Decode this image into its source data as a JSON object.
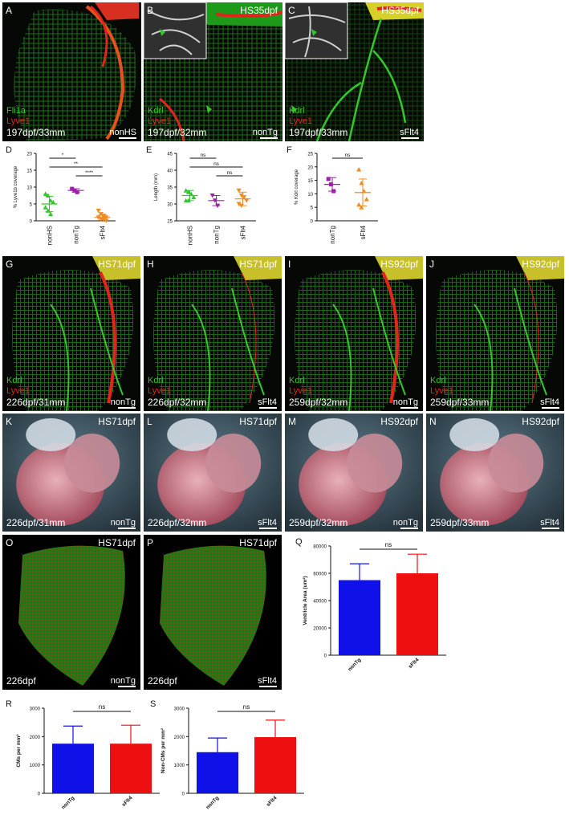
{
  "colors": {
    "green": "#35c62c",
    "red": "#e0261c",
    "blue": "#1010e8",
    "barRed": "#ee1010",
    "purple": "#a21caf",
    "orange": "#f08a22"
  },
  "row1": [
    {
      "letter": "A",
      "hs": "",
      "ch1": "Fli1a",
      "ch2": "Lyve1",
      "age": "197dpf/33mm",
      "geno": "nonHS"
    },
    {
      "letter": "B",
      "hs": "HS35dpf",
      "ch1": "Kdrl",
      "ch2": "Lyve1",
      "age": "197dpf/32mm",
      "geno": "nonTg"
    },
    {
      "letter": "C",
      "hs": "HS35dpf",
      "ch1": "Kdrl",
      "ch2": "Lyve1",
      "age": "197dpf/33mm",
      "geno": "sFlt4"
    }
  ],
  "row3": [
    {
      "letter": "G",
      "hs": "HS71dpf",
      "ch1": "Kdrl",
      "ch2": "Lyve1",
      "age": "226dpf/31mm",
      "geno": "nonTg"
    },
    {
      "letter": "H",
      "hs": "HS71dpf",
      "ch1": "Kdrl",
      "ch2": "Lyve1",
      "age": "226dpf/32mm",
      "geno": "sFlt4"
    },
    {
      "letter": "I",
      "hs": "HS92dpf",
      "ch1": "Kdrl",
      "ch2": "Lyve1",
      "age": "259dpf/32mm",
      "geno": "nonTg"
    },
    {
      "letter": "J",
      "hs": "HS92dpf",
      "ch1": "Kdrl",
      "ch2": "Lyve1",
      "age": "259dpf/33mm",
      "geno": "sFlt4"
    }
  ],
  "row4": [
    {
      "letter": "K",
      "hs": "HS71dpf",
      "age": "226dpf/31mm",
      "geno": "nonTg"
    },
    {
      "letter": "L",
      "hs": "HS71dpf",
      "age": "226dpf/32mm",
      "geno": "sFlt4"
    },
    {
      "letter": "M",
      "hs": "HS92dpf",
      "age": "259dpf/32mm",
      "geno": "nonTg"
    },
    {
      "letter": "N",
      "hs": "HS92dpf",
      "age": "259dpf/33mm",
      "geno": "sFlt4"
    }
  ],
  "row5": [
    {
      "letter": "O",
      "hs": "HS71dpf",
      "age": "226dpf",
      "geno": "nonTg"
    },
    {
      "letter": "P",
      "hs": "HS71dpf",
      "age": "226dpf",
      "geno": "sFlt4"
    }
  ],
  "chart_data": [
    {
      "letter": "D",
      "type": "scatter",
      "ylabel": "% Lyve1b coverage",
      "categories": [
        "nonHS",
        "nonTg",
        "sFlt4"
      ],
      "ylim": [
        0,
        20
      ],
      "yticks": [
        0,
        5,
        10,
        15,
        20
      ],
      "means": [
        5.0,
        9.0,
        1.0
      ],
      "sd": [
        2.3,
        0.5,
        0.8
      ],
      "points": [
        [
          8,
          7.5,
          6,
          5.5,
          4,
          3,
          2
        ],
        [
          9.5,
          9,
          8.5
        ],
        [
          3,
          2,
          1.5,
          1,
          1,
          0.5,
          0.5,
          0
        ]
      ],
      "sig": [
        {
          "a": 0,
          "b": 1,
          "label": "*"
        },
        {
          "a": 0,
          "b": 2,
          "label": "**"
        },
        {
          "a": 1,
          "b": 2,
          "label": "****"
        }
      ]
    },
    {
      "letter": "E",
      "type": "scatter",
      "ylabel": "Length (mm)",
      "categories": [
        "nonHS",
        "nonTg",
        "sFlt4"
      ],
      "ylim": [
        25,
        45
      ],
      "yticks": [
        25,
        30,
        35,
        40,
        45
      ],
      "means": [
        32.5,
        31,
        31.5
      ],
      "sd": [
        1.5,
        1.5,
        2
      ],
      "points": [
        [
          34,
          33.5,
          33,
          32,
          31,
          31
        ],
        [
          32.5,
          31,
          29.5
        ],
        [
          34,
          32.5,
          32,
          31,
          30,
          29.5
        ]
      ],
      "sig": [
        {
          "a": 0,
          "b": 1,
          "label": "ns"
        },
        {
          "a": 0,
          "b": 2,
          "label": "ns"
        },
        {
          "a": 1,
          "b": 2,
          "label": "ns"
        }
      ]
    },
    {
      "letter": "F",
      "type": "scatter",
      "ylabel": "% Kdrl coverage",
      "categories": [
        "nonTg",
        "sFlt4"
      ],
      "ylim": [
        0,
        25
      ],
      "yticks": [
        0,
        5,
        10,
        15,
        20,
        25
      ],
      "means": [
        13.5,
        10.5
      ],
      "sd": [
        2.5,
        5
      ],
      "points": [
        [
          15.5,
          13.5,
          11
        ],
        [
          19,
          14,
          11,
          8,
          6,
          5
        ]
      ],
      "sig": [
        {
          "a": 0,
          "b": 1,
          "label": "ns"
        }
      ]
    },
    {
      "letter": "Q",
      "type": "bar",
      "ylabel": "Ventricle Area (um²)",
      "categories": [
        "nonTg",
        "sFlt4"
      ],
      "ylim": [
        0,
        80000
      ],
      "yticks": [
        0,
        20000,
        40000,
        60000,
        80000
      ],
      "values": [
        55000,
        60000
      ],
      "err": [
        12000,
        14000
      ],
      "sig": "ns"
    },
    {
      "letter": "R",
      "type": "bar",
      "ylabel": "CMs per mm²",
      "categories": [
        "nonTg",
        "sFlt4"
      ],
      "ylim": [
        0,
        3000
      ],
      "yticks": [
        0,
        1000,
        2000,
        3000
      ],
      "values": [
        1750,
        1750
      ],
      "err": [
        620,
        650
      ],
      "sig": "ns"
    },
    {
      "letter": "S",
      "type": "bar",
      "ylabel": "Non-CMs per mm²",
      "categories": [
        "nonTg",
        "sFlt4"
      ],
      "ylim": [
        0,
        3000
      ],
      "yticks": [
        0,
        1000,
        2000,
        3000
      ],
      "values": [
        1450,
        1980
      ],
      "err": [
        500,
        600
      ],
      "sig": "ns"
    }
  ]
}
